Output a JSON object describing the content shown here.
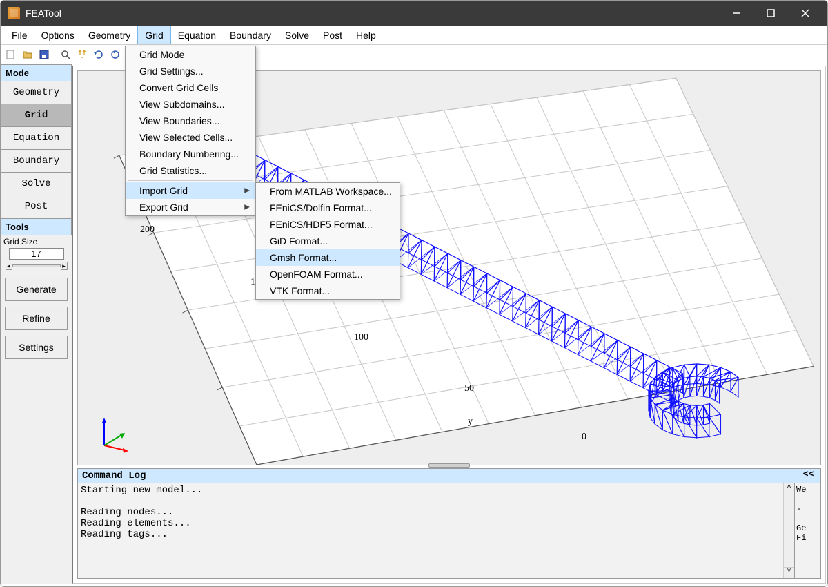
{
  "window": {
    "title": "FEATool"
  },
  "menubar": {
    "items": [
      "File",
      "Options",
      "Geometry",
      "Grid",
      "Equation",
      "Boundary",
      "Solve",
      "Post",
      "Help"
    ],
    "open_index": 3
  },
  "dropdown_grid": {
    "items": [
      {
        "label": "Grid Mode"
      },
      {
        "label": "Grid Settings..."
      },
      {
        "label": "Convert Grid Cells"
      },
      {
        "label": "View Subdomains..."
      },
      {
        "label": "View Boundaries..."
      },
      {
        "label": "View Selected Cells..."
      },
      {
        "label": "Boundary Numbering..."
      },
      {
        "label": "Grid Statistics..."
      },
      {
        "label": "Import Grid",
        "submenu": true,
        "highlight": true
      },
      {
        "label": "Export Grid",
        "submenu": true
      }
    ]
  },
  "dropdown_import": {
    "items": [
      {
        "label": "From MATLAB Workspace..."
      },
      {
        "label": "FEniCS/Dolfin Format..."
      },
      {
        "label": "FEniCS/HDF5 Format..."
      },
      {
        "label": "GiD Format..."
      },
      {
        "label": "Gmsh Format...",
        "highlight": true
      },
      {
        "label": "OpenFOAM Format..."
      },
      {
        "label": "VTK Format..."
      }
    ]
  },
  "sidebar": {
    "mode_header": "Mode",
    "modes": [
      "Geometry",
      "Grid",
      "Equation",
      "Boundary",
      "Solve",
      "Post"
    ],
    "active_mode_index": 1,
    "tools_header": "Tools",
    "grid_size_label": "Grid Size",
    "grid_size_value": "17",
    "actions": [
      "Generate",
      "Refine",
      "Settings"
    ]
  },
  "viewport": {
    "axis_ticks": {
      "200": "200",
      "150": "150",
      "100": "100",
      "50": "50",
      "0": "0"
    },
    "y_axis_label": "y",
    "mesh_color": "#1010ff",
    "background": "#eeeeee",
    "grid_line_color": "#c8c8c8"
  },
  "commandlog": {
    "title": "Command Log",
    "collapse": "<<",
    "text": "Starting new model...\n\nReading nodes...\nReading elements...\nReading tags...",
    "right_panel_text": "We\n\n-\n\nGe\nFi"
  },
  "toolbar_icons": [
    "new",
    "open",
    "save",
    "zoom",
    "pan",
    "rotate",
    "reset"
  ]
}
